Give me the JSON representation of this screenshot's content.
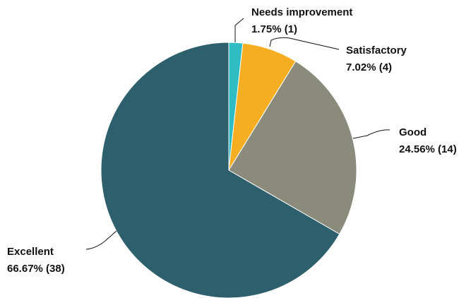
{
  "chart_data": {
    "type": "pie",
    "start_angle_deg": 0,
    "direction": "clockwise",
    "slices": [
      {
        "label": "Needs improvement",
        "percent_text": "1.75%",
        "count_text": "(1)",
        "value": 1,
        "color": "#2fbcc2"
      },
      {
        "label": "Satisfactory",
        "percent_text": "7.02%",
        "count_text": "(4)",
        "value": 4,
        "color": "#f5ae21"
      },
      {
        "label": "Good",
        "percent_text": "24.56%",
        "count_text": "(14)",
        "value": 14,
        "color": "#8a8b7a"
      },
      {
        "label": "Excellent",
        "percent_text": "66.67%",
        "count_text": "(38)",
        "value": 38,
        "color": "#2e5f6c"
      }
    ]
  }
}
